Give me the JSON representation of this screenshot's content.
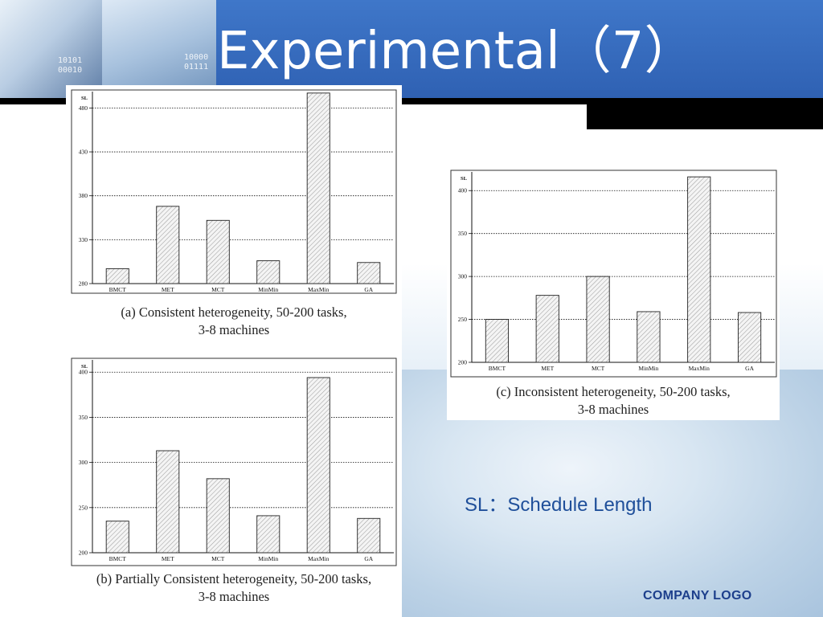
{
  "slide": {
    "title": "Experimental（7）",
    "note": "SL：Schedule Length",
    "logo": "COMPANY LOGO",
    "thumb_binary_1": "10101\n00010",
    "thumb_binary_2": "10000\n01111"
  },
  "colors": {
    "header": "#3b6fc0",
    "title": "#ffffff",
    "note": "#1f4f9a",
    "logo": "#1d3f8c"
  },
  "chart_data": [
    {
      "id": "a",
      "type": "bar",
      "ylabel": "SL",
      "categories": [
        "BMCT",
        "MET",
        "MCT",
        "MinMin",
        "MaxMin",
        "GA"
      ],
      "values": [
        297,
        368,
        352,
        306,
        497,
        304
      ],
      "ylim": [
        280,
        495
      ],
      "yticks": [
        280,
        330,
        380,
        430,
        480
      ],
      "grid": true,
      "caption": [
        "(a) Consistent heterogeneity, 50-200 tasks,",
        "3-8 machines"
      ]
    },
    {
      "id": "b",
      "type": "bar",
      "ylabel": "SL",
      "categories": [
        "BMCT",
        "MET",
        "MCT",
        "MinMin",
        "MaxMin",
        "GA"
      ],
      "values": [
        235,
        313,
        282,
        241,
        394,
        238
      ],
      "ylim": [
        200,
        410
      ],
      "yticks": [
        200,
        250,
        300,
        350,
        400
      ],
      "grid": true,
      "caption": [
        "(b) Partially Consistent heterogeneity, 50-200 tasks,",
        "3-8 machines"
      ]
    },
    {
      "id": "c",
      "type": "bar",
      "ylabel": "SL",
      "categories": [
        "BMCT",
        "MET",
        "MCT",
        "MinMin",
        "MaxMin",
        "GA"
      ],
      "values": [
        250,
        278,
        300,
        259,
        416,
        258
      ],
      "ylim": [
        200,
        418
      ],
      "yticks": [
        200,
        250,
        300,
        350,
        400
      ],
      "grid": true,
      "caption": [
        "(c) Inconsistent heterogeneity, 50-200 tasks,",
        "3-8 machines"
      ]
    }
  ]
}
